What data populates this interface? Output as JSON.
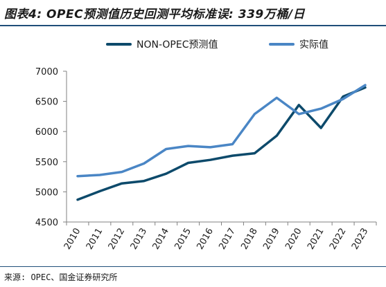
{
  "title": "图表4: OPEC预测值历史回测平均标准误: 339万桶/日",
  "source": "来源: OPEC、国金证券研究所",
  "chart_data": {
    "type": "line",
    "title": "图表4: OPEC预测值历史回测平均标准误: 339万桶/日",
    "x": [
      "2010",
      "2011",
      "2012",
      "2013",
      "2014",
      "2015",
      "2016",
      "2017",
      "2018",
      "2019",
      "2020",
      "2021",
      "2022",
      "2023"
    ],
    "ylim": [
      4500,
      7000
    ],
    "yticks": [
      4500,
      5000,
      5500,
      6000,
      6500,
      7000
    ],
    "grid": false,
    "legend_position": "top",
    "series": [
      {
        "name": "NON-OPEC预测值",
        "color": "#0d4a6b",
        "values": [
          4870,
          5010,
          5140,
          5180,
          5300,
          5480,
          5530,
          5600,
          5640,
          5930,
          6440,
          6060,
          6580,
          6730
        ]
      },
      {
        "name": "实际值",
        "color": "#4a86c5",
        "values": [
          5260,
          5280,
          5330,
          5470,
          5710,
          5760,
          5740,
          5790,
          6290,
          6560,
          6290,
          6380,
          6540,
          6770
        ]
      }
    ]
  }
}
